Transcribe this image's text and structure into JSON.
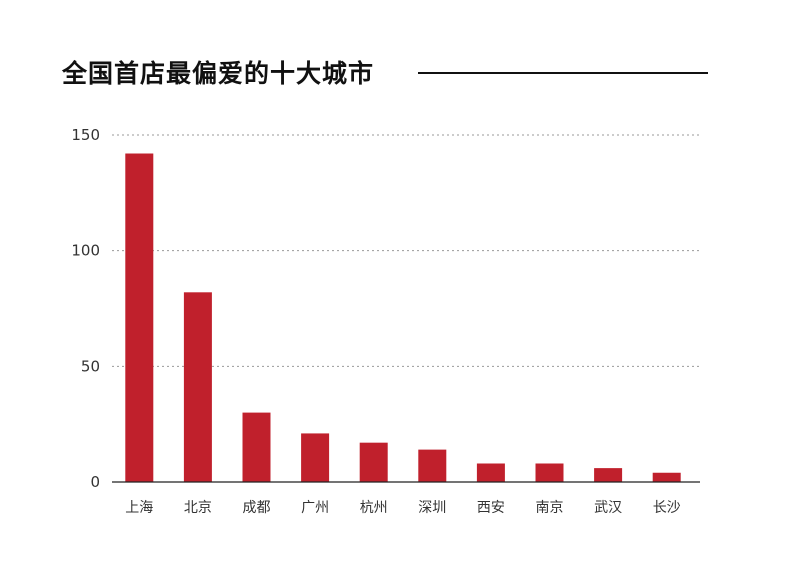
{
  "title": "全国首店最偏爱的十大城市",
  "colors": {
    "bar": "#c0202c",
    "grid": "#9a9a9a",
    "axis": "#222222",
    "title_rule": "#111111"
  },
  "chart_data": {
    "type": "bar",
    "title": "全国首店最偏爱的十大城市",
    "xlabel": "",
    "ylabel": "",
    "ylim": [
      0,
      150
    ],
    "yticks": [
      0,
      50,
      100,
      150
    ],
    "grid": true,
    "categories": [
      "上海",
      "北京",
      "成都",
      "广州",
      "杭州",
      "深圳",
      "西安",
      "南京",
      "武汉",
      "长沙"
    ],
    "values": [
      142,
      82,
      30,
      21,
      17,
      14,
      8,
      8,
      6,
      4
    ]
  }
}
